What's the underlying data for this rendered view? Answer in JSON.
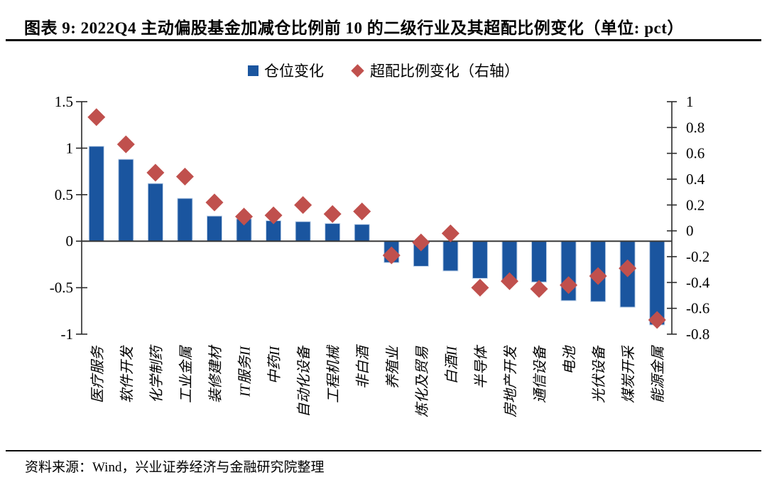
{
  "title": "图表 9: 2022Q4 主动偏股基金加减仓比例前 10 的二级行业及其超配比例变化（单位: pct）",
  "source": "资料来源：Wind，兴业证券经济与金融研究院整理",
  "colors": {
    "bar": "#1A559F",
    "bar_edge": "#bcd0e8",
    "diamond": "#C0504D",
    "axis": "#2b2b2b",
    "zero_line": "#3a3a3a"
  },
  "chart_data": {
    "type": "bar",
    "categories": [
      "医疗服务",
      "软件开发",
      "化学制药",
      "工业金属",
      "装修建材",
      "IT服务II",
      "中药II",
      "自动化设备",
      "工程机械",
      "非白酒",
      "养殖业",
      "炼化及贸易",
      "白酒II",
      "半导体",
      "房地产开发",
      "通信设备",
      "电池",
      "光伏设备",
      "煤炭开采",
      "能源金属"
    ],
    "series": [
      {
        "name": "仓位变化",
        "type": "bar",
        "axis": "left",
        "values": [
          1.02,
          0.88,
          0.62,
          0.46,
          0.27,
          0.24,
          0.22,
          0.21,
          0.19,
          0.18,
          -0.23,
          -0.27,
          -0.32,
          -0.4,
          -0.43,
          -0.44,
          -0.64,
          -0.65,
          -0.71,
          -0.9
        ]
      },
      {
        "name": "超配比例变化（右轴）",
        "type": "scatter",
        "marker": "diamond",
        "axis": "right",
        "values": [
          0.88,
          0.67,
          0.45,
          0.42,
          0.22,
          0.11,
          0.12,
          0.2,
          0.13,
          0.15,
          -0.19,
          -0.09,
          -0.02,
          -0.44,
          -0.39,
          -0.45,
          -0.42,
          -0.35,
          -0.29,
          -0.69
        ]
      }
    ],
    "left_axis": {
      "min": -1,
      "max": 1.5,
      "tick_labels": [
        "1.5",
        "1",
        "0.5",
        "0",
        "-0.5",
        "-1"
      ]
    },
    "right_axis": {
      "min": -0.8,
      "max": 1,
      "tick_labels": [
        "1",
        "0.8",
        "0.6",
        "0.4",
        "0.2",
        "0",
        "-0.2",
        "-0.4",
        "-0.6",
        "-0.8"
      ]
    },
    "grid": false,
    "legend_position": "top"
  }
}
